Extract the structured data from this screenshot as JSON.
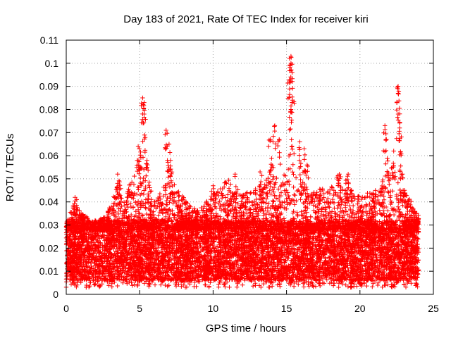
{
  "chart_data": {
    "type": "scatter",
    "title": "Day 183 of 2021, Rate Of TEC Index for receiver kiri",
    "xlabel": "GPS time / hours",
    "ylabel": "ROTI / TECUs",
    "xlim": [
      0,
      25
    ],
    "ylim": [
      0,
      0.11
    ],
    "x_ticks": [
      0,
      5,
      10,
      15,
      20,
      25
    ],
    "x_tick_labels": [
      "0",
      "5",
      "10",
      "15",
      "20",
      "25"
    ],
    "y_ticks": [
      0,
      0.01,
      0.02,
      0.03,
      0.04,
      0.05,
      0.06,
      0.07,
      0.08,
      0.09,
      0.1,
      0.11
    ],
    "y_tick_labels": [
      "0",
      "0.01",
      "0.02",
      "0.03",
      "0.04",
      "0.05",
      "0.06",
      "0.07",
      "0.08",
      "0.09",
      "0.1",
      "0.11"
    ],
    "grid": true,
    "marker": "+",
    "color": "#ff0000",
    "time_span_hours": [
      0,
      24
    ],
    "background_band": [
      0.006,
      0.032
    ],
    "envelope": [
      [
        0.0,
        0.03
      ],
      [
        0.5,
        0.04
      ],
      [
        1.0,
        0.036
      ],
      [
        2.0,
        0.03
      ],
      [
        3.0,
        0.038
      ],
      [
        3.6,
        0.05
      ],
      [
        4.0,
        0.043
      ],
      [
        4.6,
        0.052
      ],
      [
        5.0,
        0.06
      ],
      [
        5.3,
        0.068
      ],
      [
        5.6,
        0.05
      ],
      [
        6.0,
        0.04
      ],
      [
        6.6,
        0.046
      ],
      [
        7.0,
        0.058
      ],
      [
        7.5,
        0.047
      ],
      [
        8.0,
        0.042
      ],
      [
        9.0,
        0.036
      ],
      [
        10.0,
        0.044
      ],
      [
        11.0,
        0.05
      ],
      [
        12.0,
        0.044
      ],
      [
        13.0,
        0.046
      ],
      [
        13.6,
        0.052
      ],
      [
        14.0,
        0.058
      ],
      [
        14.5,
        0.046
      ],
      [
        15.0,
        0.058
      ],
      [
        15.3,
        0.07
      ],
      [
        15.7,
        0.054
      ],
      [
        16.0,
        0.058
      ],
      [
        16.5,
        0.044
      ],
      [
        17.0,
        0.046
      ],
      [
        18.0,
        0.046
      ],
      [
        18.5,
        0.052
      ],
      [
        19.0,
        0.05
      ],
      [
        20.0,
        0.042
      ],
      [
        21.0,
        0.046
      ],
      [
        21.5,
        0.05
      ],
      [
        22.0,
        0.056
      ],
      [
        22.5,
        0.06
      ],
      [
        23.0,
        0.046
      ],
      [
        24.0,
        0.034
      ]
    ],
    "peaks": [
      {
        "x": 0.6,
        "y": 0.042
      },
      {
        "x": 3.5,
        "y": 0.052
      },
      {
        "x": 4.9,
        "y": 0.064
      },
      {
        "x": 5.2,
        "y": 0.085
      },
      {
        "x": 5.3,
        "y": 0.083
      },
      {
        "x": 5.3,
        "y": 0.078
      },
      {
        "x": 5.5,
        "y": 0.058
      },
      {
        "x": 6.8,
        "y": 0.071
      },
      {
        "x": 7.0,
        "y": 0.065
      },
      {
        "x": 7.1,
        "y": 0.058
      },
      {
        "x": 10.0,
        "y": 0.047
      },
      {
        "x": 11.5,
        "y": 0.052
      },
      {
        "x": 13.2,
        "y": 0.053
      },
      {
        "x": 13.9,
        "y": 0.067
      },
      {
        "x": 14.2,
        "y": 0.073
      },
      {
        "x": 14.5,
        "y": 0.067
      },
      {
        "x": 15.3,
        "y": 0.103
      },
      {
        "x": 15.3,
        "y": 0.1
      },
      {
        "x": 15.3,
        "y": 0.097
      },
      {
        "x": 15.2,
        "y": 0.093
      },
      {
        "x": 15.4,
        "y": 0.084
      },
      {
        "x": 15.3,
        "y": 0.08
      },
      {
        "x": 15.9,
        "y": 0.066
      },
      {
        "x": 16.2,
        "y": 0.063
      },
      {
        "x": 16.4,
        "y": 0.056
      },
      {
        "x": 18.6,
        "y": 0.052
      },
      {
        "x": 19.2,
        "y": 0.052
      },
      {
        "x": 21.7,
        "y": 0.073
      },
      {
        "x": 21.8,
        "y": 0.067
      },
      {
        "x": 22.3,
        "y": 0.062
      },
      {
        "x": 22.6,
        "y": 0.09
      },
      {
        "x": 22.6,
        "y": 0.087
      },
      {
        "x": 22.6,
        "y": 0.078
      },
      {
        "x": 22.7,
        "y": 0.072
      },
      {
        "x": 22.8,
        "y": 0.061
      },
      {
        "x": 22.9,
        "y": 0.052
      }
    ]
  }
}
